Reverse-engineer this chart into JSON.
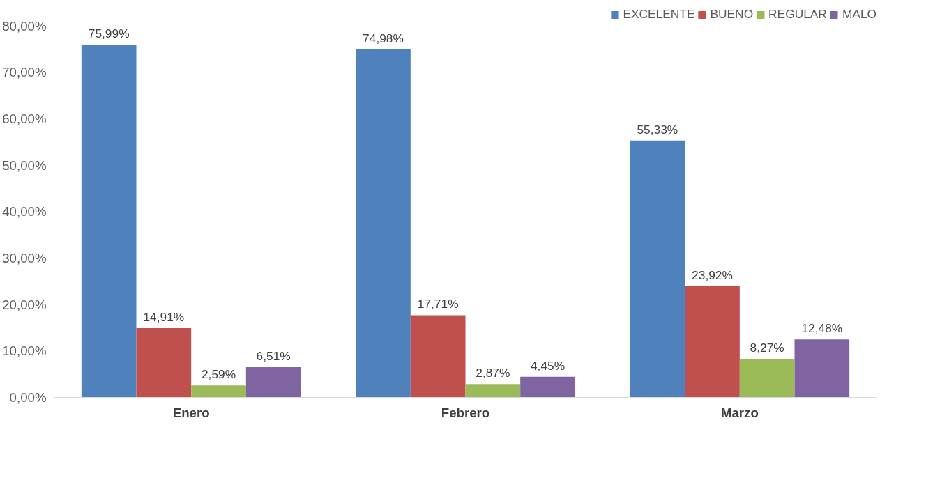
{
  "chart_data": {
    "type": "bar",
    "categories": [
      "Enero",
      "Febrero",
      "Marzo"
    ],
    "series": [
      {
        "name": "EXCELENTE",
        "color": "#4f81bd",
        "values": [
          75.99,
          74.98,
          55.33
        ],
        "value_labels": [
          "75,99%",
          "74,98%",
          "55,33%"
        ]
      },
      {
        "name": "BUENO",
        "color": "#c0504d",
        "values": [
          14.91,
          17.71,
          23.92
        ],
        "value_labels": [
          "14,91%",
          "17,71%",
          "23,92%"
        ]
      },
      {
        "name": "REGULAR",
        "color": "#9bbb59",
        "values": [
          2.59,
          2.87,
          8.27
        ],
        "value_labels": [
          "2,59%",
          "2,87%",
          "8,27%"
        ]
      },
      {
        "name": "MALO",
        "color": "#8064a2",
        "values": [
          6.51,
          4.45,
          12.48
        ],
        "value_labels": [
          "6,51%",
          "4,45%",
          "12,48%"
        ]
      }
    ],
    "ylim": [
      0,
      84
    ],
    "yticks": [
      {
        "value": 0,
        "label": "0,00%"
      },
      {
        "value": 10,
        "label": "10,00%"
      },
      {
        "value": 20,
        "label": "20,00%"
      },
      {
        "value": 30,
        "label": "30,00%"
      },
      {
        "value": 40,
        "label": "40,00%"
      },
      {
        "value": 50,
        "label": "50,00%"
      },
      {
        "value": 60,
        "label": "60,00%"
      },
      {
        "value": 70,
        "label": "70,00%"
      },
      {
        "value": 80,
        "label": "80,00%"
      }
    ],
    "grid": false,
    "legend": "top right"
  }
}
